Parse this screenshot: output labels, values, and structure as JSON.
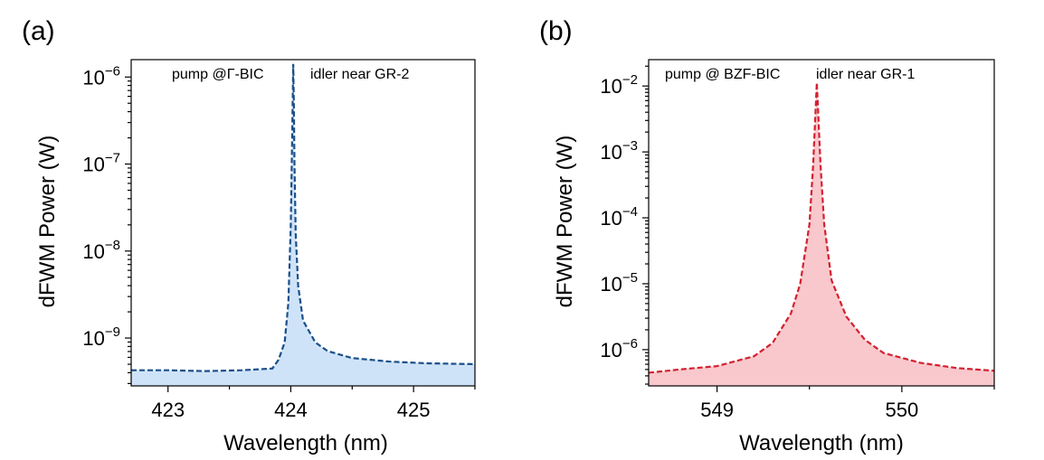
{
  "chart_data": [
    {
      "type": "area",
      "panel_label": "(a)",
      "xlabel": "Wavelength (nm)",
      "ylabel": "dFWM Power (W)",
      "yscale": "log",
      "xlim": [
        422.7,
        425.5
      ],
      "ylim_log10": [
        -9.55,
        -5.8
      ],
      "xticks": [
        423,
        424,
        425
      ],
      "xticks_minor": [
        423.5,
        424.5,
        425.5
      ],
      "yticks_exponents": [
        -9,
        -8,
        -7,
        -6
      ],
      "ytick_base": "10",
      "annotations": [
        "pump @Γ-BIC",
        "idler near GR-2"
      ],
      "line_color": "#1a4f8a",
      "fill_color": "#cfe3f8",
      "peak_center": 424.02,
      "series": [
        {
          "name": "dFWM",
          "x": [
            422.7,
            423.0,
            423.3,
            423.6,
            423.85,
            423.9,
            423.95,
            423.98,
            424.0,
            424.01,
            424.02,
            424.025,
            424.03,
            424.04,
            424.06,
            424.1,
            424.2,
            424.3,
            424.5,
            424.8,
            425.1,
            425.5
          ],
          "log10_y": [
            -9.37,
            -9.37,
            -9.38,
            -9.37,
            -9.35,
            -9.25,
            -9.05,
            -8.6,
            -7.7,
            -6.8,
            -5.85,
            -6.3,
            -7.0,
            -7.8,
            -8.4,
            -8.8,
            -9.05,
            -9.15,
            -9.23,
            -9.27,
            -9.29,
            -9.3
          ]
        }
      ]
    },
    {
      "type": "area",
      "panel_label": "(b)",
      "xlabel": "Wavelength (nm)",
      "ylabel": "dFWM Power (W)",
      "yscale": "log",
      "xlim": [
        548.63,
        550.5
      ],
      "ylim_log10": [
        -6.55,
        -1.6
      ],
      "xticks": [
        549,
        550
      ],
      "xticks_minor": [
        549.5,
        550.5
      ],
      "yticks_exponents": [
        -6,
        -5,
        -4,
        -3,
        -2
      ],
      "ytick_base": "10",
      "annotations": [
        "pump @ BZF-BIC",
        "idler near GR-1"
      ],
      "line_color": "#d42030",
      "fill_color": "#f8c8cc",
      "peak_center": 549.54,
      "series": [
        {
          "name": "dFWM",
          "x": [
            548.63,
            548.8,
            549.0,
            549.2,
            549.3,
            549.4,
            549.45,
            549.5,
            549.52,
            549.54,
            549.56,
            549.58,
            549.62,
            549.7,
            549.8,
            549.9,
            550.1,
            550.3,
            550.5
          ],
          "log10_y": [
            -6.35,
            -6.3,
            -6.25,
            -6.1,
            -5.9,
            -5.45,
            -5.0,
            -4.1,
            -3.2,
            -1.95,
            -3.2,
            -4.1,
            -4.95,
            -5.5,
            -5.85,
            -6.05,
            -6.2,
            -6.28,
            -6.32
          ]
        }
      ]
    }
  ]
}
